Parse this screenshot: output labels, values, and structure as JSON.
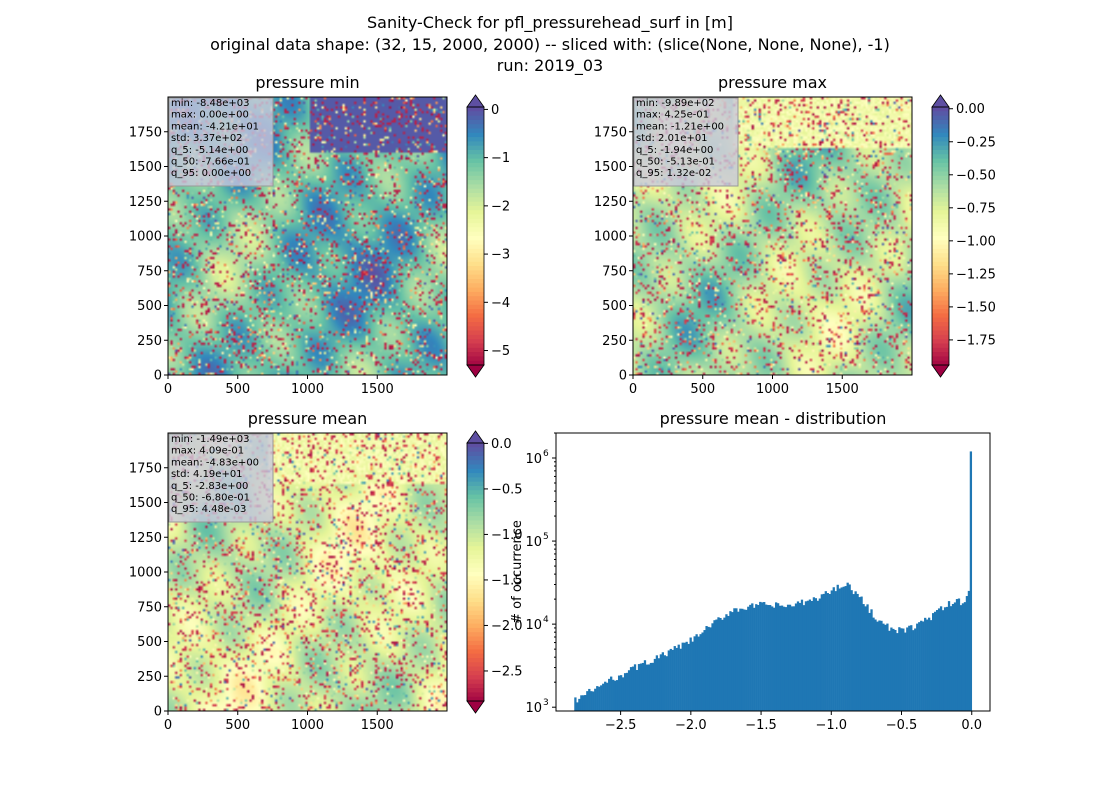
{
  "figure": {
    "title_line1": "Sanity-Check for pfl_pressurehead_surf in [m]",
    "title_line2": "original data shape: (32, 15, 2000, 2000) -- sliced with: (slice(None, None, None), -1)",
    "title_line3": "run: 2019_03"
  },
  "colors": {
    "hist_bar": "#1f77b4",
    "colormap": "Spectral",
    "cmap_stops": [
      "#9e0142",
      "#d53e4f",
      "#f46d43",
      "#fdae61",
      "#fee08b",
      "#ffffbf",
      "#e6f598",
      "#abdda4",
      "#66c2a5",
      "#3288bd",
      "#5e4fa2"
    ],
    "stats_box_bg": "#c8c8dc"
  },
  "chart_data": [
    {
      "type": "heatmap",
      "title": "pressure min",
      "colormap": "Spectral",
      "xlim": [
        0,
        2000
      ],
      "ylim": [
        0,
        2000
      ],
      "xticks": [
        "0",
        "500",
        "1000",
        "1500"
      ],
      "yticks": [
        "0",
        "250",
        "500",
        "750",
        "1000",
        "1250",
        "1500",
        "1750"
      ],
      "colorbar": {
        "range": [
          -5.3,
          0.05
        ],
        "ticks": [
          "0",
          "−1",
          "−2",
          "−3",
          "−4",
          "−5"
        ],
        "tick_values": [
          0,
          -1,
          -2,
          -3,
          -4,
          -5
        ],
        "extend": "both"
      },
      "stats": [
        "min: -8.48e+03",
        "max: 0.00e+00",
        "mean: -4.21e+01",
        "std: 3.37e+02",
        "q_5: -5.14e+00",
        "q_50: -7.66e-01",
        "q_95: 0.00e+00"
      ]
    },
    {
      "type": "heatmap",
      "title": "pressure max",
      "colormap": "Spectral",
      "xlim": [
        0,
        2000
      ],
      "ylim": [
        0,
        2000
      ],
      "xticks": [
        "0",
        "500",
        "1000",
        "1500"
      ],
      "yticks": [
        "0",
        "250",
        "500",
        "750",
        "1000",
        "1250",
        "1500",
        "1750"
      ],
      "colorbar": {
        "range": [
          -1.94,
          0.0132
        ],
        "ticks": [
          "0.00",
          "−0.25",
          "−0.50",
          "−0.75",
          "−1.00",
          "−1.25",
          "−1.50",
          "−1.75"
        ],
        "tick_values": [
          0,
          -0.25,
          -0.5,
          -0.75,
          -1.0,
          -1.25,
          -1.5,
          -1.75
        ],
        "extend": "both"
      },
      "stats": [
        "min: -9.89e+02",
        "max: 4.25e-01",
        "mean: -1.21e+00",
        "std: 2.01e+01",
        "q_5: -1.94e+00",
        "q_50: -5.13e-01",
        "q_95: 1.32e-02"
      ]
    },
    {
      "type": "heatmap",
      "title": "pressure mean",
      "colormap": "Spectral",
      "xlim": [
        0,
        2000
      ],
      "ylim": [
        0,
        2000
      ],
      "xticks": [
        "0",
        "500",
        "1000",
        "1500"
      ],
      "yticks": [
        "0",
        "250",
        "500",
        "750",
        "1000",
        "1250",
        "1500",
        "1750"
      ],
      "colorbar": {
        "range": [
          -2.83,
          0.00448
        ],
        "ticks": [
          "0.0",
          "−0.5",
          "−1.0",
          "−1.5",
          "−2.0",
          "−2.5"
        ],
        "tick_values": [
          0,
          -0.5,
          -1.0,
          -1.5,
          -2.0,
          -2.5
        ],
        "extend": "both"
      },
      "stats": [
        "min: -1.49e+03",
        "max: 4.09e-01",
        "mean: -4.83e+00",
        "std: 4.19e+01",
        "q_5: -2.83e+00",
        "q_50: -6.80e-01",
        "q_95: 4.48e-03"
      ]
    },
    {
      "type": "bar",
      "title": "pressure mean - distribution",
      "xlabel": "",
      "ylabel": "# of occurrence",
      "yscale": "log",
      "xlim": [
        -2.96,
        0.13
      ],
      "ylim": [
        900,
        2000000
      ],
      "xticks": [
        "−2.5",
        "−2.0",
        "−1.5",
        "−1.0",
        "−0.5",
        "0.0"
      ],
      "xtick_values": [
        -2.5,
        -2.0,
        -1.5,
        -1.0,
        -0.5,
        0.0
      ],
      "ytick_values": [
        1000,
        10000,
        100000,
        1000000
      ],
      "ytick_mantissa": [
        "10",
        "10",
        "10",
        "10"
      ],
      "ytick_exponents": [
        "3",
        "4",
        "5",
        "6"
      ],
      "bin_range": [
        -2.83,
        0.0
      ],
      "counts_anchor_x": [
        -2.83,
        -2.6,
        -2.4,
        -2.2,
        -2.0,
        -1.85,
        -1.7,
        -1.5,
        -1.3,
        -1.15,
        -1.0,
        -0.9,
        -0.8,
        -0.65,
        -0.55,
        -0.45,
        -0.3,
        -0.15,
        -0.05,
        -0.01,
        0.0
      ],
      "counts_anchor_y": [
        1200,
        2000,
        3000,
        4200,
        6300,
        9800,
        15000,
        17000,
        16500,
        19000,
        25000,
        32000,
        21000,
        10500,
        8200,
        8700,
        12000,
        18000,
        19000,
        28000,
        1200000
      ]
    }
  ]
}
